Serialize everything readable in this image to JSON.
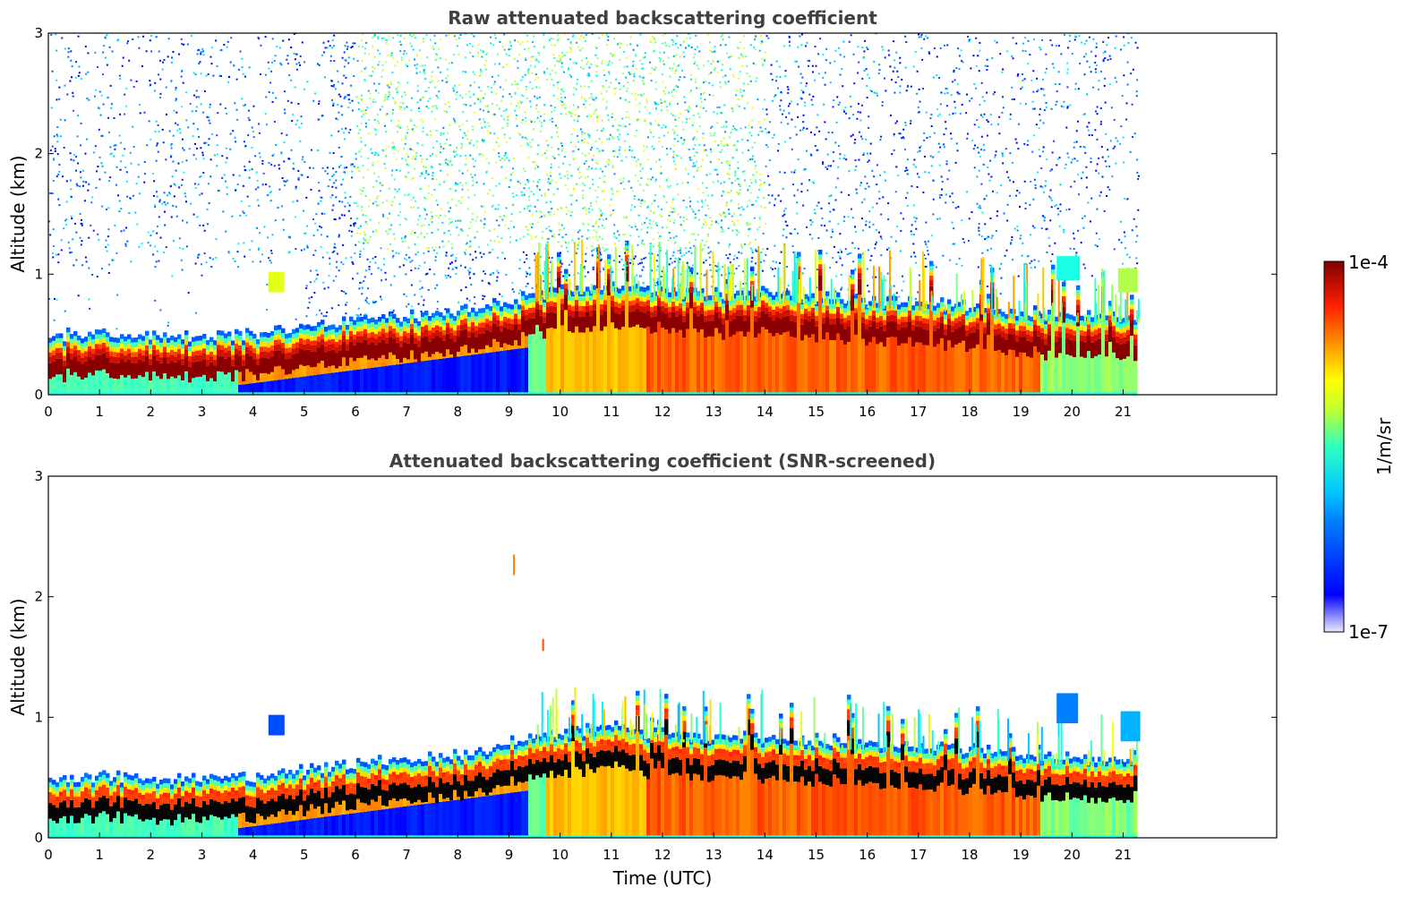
{
  "chart_data": [
    {
      "type": "heatmap",
      "title": "Raw attenuated backscattering coefficient",
      "xlabel": "",
      "ylabel": "Altitude (km)",
      "xlim": [
        0,
        24
      ],
      "ylim": [
        0,
        3
      ],
      "data_xmax": 21.3,
      "xticks": [
        "0",
        "1",
        "2",
        "3",
        "4",
        "5",
        "6",
        "7",
        "8",
        "9",
        "10",
        "11",
        "12",
        "13",
        "14",
        "15",
        "16",
        "17",
        "18",
        "19",
        "20",
        "21"
      ],
      "yticks": [
        "0",
        "1",
        "2",
        "3"
      ],
      "screened": false,
      "layer_top_km": [
        {
          "t": 0,
          "z": 0.42
        },
        {
          "t": 1,
          "z": 0.45
        },
        {
          "t": 2,
          "z": 0.43
        },
        {
          "t": 3,
          "z": 0.42
        },
        {
          "t": 4,
          "z": 0.45
        },
        {
          "t": 5,
          "z": 0.5
        },
        {
          "t": 6,
          "z": 0.55
        },
        {
          "t": 7,
          "z": 0.58
        },
        {
          "t": 8,
          "z": 0.62
        },
        {
          "t": 9,
          "z": 0.72
        },
        {
          "t": 10,
          "z": 0.82
        },
        {
          "t": 11,
          "z": 0.85
        },
        {
          "t": 12,
          "z": 0.8
        },
        {
          "t": 13,
          "z": 0.78
        },
        {
          "t": 14,
          "z": 0.78
        },
        {
          "t": 15,
          "z": 0.75
        },
        {
          "t": 16,
          "z": 0.72
        },
        {
          "t": 17,
          "z": 0.7
        },
        {
          "t": 18,
          "z": 0.68
        },
        {
          "t": 19,
          "z": 0.62
        },
        {
          "t": 20,
          "z": 0.6
        },
        {
          "t": 21.3,
          "z": 0.6
        }
      ]
    },
    {
      "type": "heatmap",
      "title": "Attenuated backscattering coefficient (SNR-screened)",
      "xlabel": "Time (UTC)",
      "ylabel": "Altitude (km)",
      "xlim": [
        0,
        24
      ],
      "ylim": [
        0,
        3
      ],
      "data_xmax": 21.3,
      "xticks": [
        "0",
        "1",
        "2",
        "3",
        "4",
        "5",
        "6",
        "7",
        "8",
        "9",
        "10",
        "11",
        "12",
        "13",
        "14",
        "15",
        "16",
        "17",
        "18",
        "19",
        "20",
        "21"
      ],
      "yticks": [
        "0",
        "1",
        "2",
        "3"
      ],
      "screened": true
    }
  ],
  "colorbar": {
    "label": "1/m/sr",
    "max_label": "1e-4",
    "min_label": "1e-7",
    "colormap": "jet",
    "scale": "log",
    "range": [
      1e-07,
      0.0001
    ]
  }
}
